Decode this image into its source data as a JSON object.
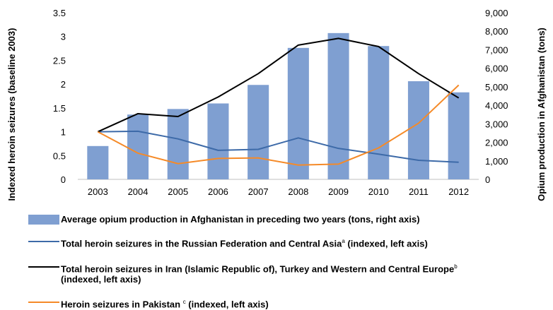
{
  "chart_data": {
    "type": "bar",
    "categories": [
      "2003",
      "2004",
      "2005",
      "2006",
      "2007",
      "2008",
      "2009",
      "2010",
      "2011",
      "2012"
    ],
    "series": [
      {
        "name": "Average opium production in Afghanistan in preceding two years (tons, right axis)",
        "kind": "bar",
        "axis": "right",
        "color": "#7f9fd1",
        "values": [
          1800,
          3500,
          3800,
          4100,
          5100,
          7100,
          7900,
          7200,
          5300,
          4700
        ]
      },
      {
        "name": "Total heroin seizures in the Russian Federation and Central Asia",
        "sup": "a",
        "suffix": " (indexed, left axis)",
        "kind": "line",
        "axis": "left",
        "color": "#3d6aa8",
        "values": [
          1.0,
          1.01,
          0.85,
          0.61,
          0.63,
          0.87,
          0.65,
          0.53,
          0.4,
          0.36
        ]
      },
      {
        "name": "Total heroin seizures in Iran (Islamic Republic of), Turkey and Western and Central Europe",
        "sup": "b",
        "suffix": "(indexed, left axis)",
        "kind": "line",
        "axis": "left",
        "color": "#000000",
        "values": [
          1.0,
          1.38,
          1.32,
          1.73,
          2.22,
          2.82,
          2.96,
          2.79,
          2.22,
          1.71
        ]
      },
      {
        "name": "Heroin seizures in Pakistan ",
        "sup": "c",
        "suffix": " (indexed, left axis)",
        "kind": "line",
        "axis": "left",
        "color": "#f58a28",
        "values": [
          1.0,
          0.55,
          0.33,
          0.44,
          0.45,
          0.3,
          0.32,
          0.66,
          1.18,
          1.98
        ]
      }
    ],
    "ylabel": "Indexed heroin seizures (baseline 2003)",
    "y2label": "Opium production in Afghanistan (tons)",
    "ylim": [
      0,
      3.5
    ],
    "y2lim": [
      0,
      9000
    ],
    "yticks": [
      "0",
      "0.5",
      "1",
      "1.5",
      "2",
      "2.5",
      "3",
      "3.5"
    ],
    "y2ticks": [
      "0",
      "1,000",
      "2,000",
      "3,000",
      "4,000",
      "5,000",
      "6,000",
      "7,000",
      "8,000",
      "9,000"
    ],
    "grid": false,
    "legend": "bottom"
  }
}
